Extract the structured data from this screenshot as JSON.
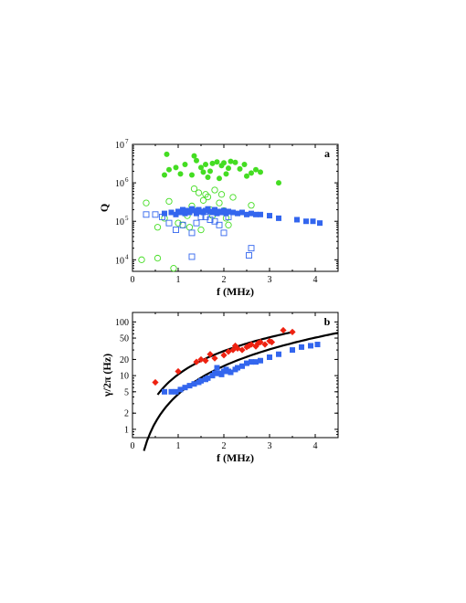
{
  "chart_data": [
    {
      "type": "scatter",
      "panel_label": "a",
      "xlabel": "f (MHz)",
      "ylabel": "Q",
      "xlim": [
        0,
        4.5
      ],
      "ylim": [
        5000,
        10000000
      ],
      "y_scale": "log",
      "x_ticks": [
        0,
        1,
        2,
        3,
        4
      ],
      "x_tick_labels": [
        "0",
        "1",
        "2",
        "3",
        "4"
      ],
      "y_ticks": [
        10000,
        100000,
        1000000,
        10000000
      ],
      "y_tick_mantissa": [
        "10",
        "10",
        "10",
        "10"
      ],
      "y_tick_exponents": [
        "4",
        "5",
        "6",
        "7"
      ],
      "grid": false,
      "series": [
        {
          "marker": "filled-circle",
          "color": "#44dd22",
          "points": [
            [
              0.75,
              5500000
            ],
            [
              0.8,
              2200000
            ],
            [
              0.95,
              2500000
            ],
            [
              1.05,
              1700000
            ],
            [
              1.15,
              3000000
            ],
            [
              1.3,
              1600000
            ],
            [
              1.4,
              3800000
            ],
            [
              1.5,
              2500000
            ],
            [
              1.55,
              1900000
            ],
            [
              1.6,
              3000000
            ],
            [
              1.65,
              1400000
            ],
            [
              1.7,
              2000000
            ],
            [
              1.75,
              3200000
            ],
            [
              1.85,
              3500000
            ],
            [
              1.9,
              1300000
            ],
            [
              1.95,
              2800000
            ],
            [
              2.0,
              3300000
            ],
            [
              2.05,
              1700000
            ],
            [
              2.1,
              2400000
            ],
            [
              2.15,
              3600000
            ],
            [
              2.25,
              3400000
            ],
            [
              2.35,
              2300000
            ],
            [
              2.45,
              3000000
            ],
            [
              2.5,
              1500000
            ],
            [
              2.6,
              1800000
            ],
            [
              2.7,
              2200000
            ],
            [
              2.8,
              1900000
            ],
            [
              3.2,
              1000000
            ],
            [
              0.7,
              1600000
            ],
            [
              1.35,
              5000000
            ]
          ]
        },
        {
          "marker": "open-circle",
          "color": "#44dd22",
          "points": [
            [
              0.2,
              10000
            ],
            [
              0.55,
              11000
            ],
            [
              0.3,
              300000
            ],
            [
              0.55,
              70000
            ],
            [
              0.7,
              120000
            ],
            [
              0.8,
              330000
            ],
            [
              0.9,
              6000
            ],
            [
              1.0,
              90000
            ],
            [
              1.1,
              80000
            ],
            [
              1.2,
              140000
            ],
            [
              1.3,
              250000
            ],
            [
              1.35,
              700000
            ],
            [
              1.45,
              550000
            ],
            [
              1.55,
              350000
            ],
            [
              1.6,
              500000
            ],
            [
              1.65,
              430000
            ],
            [
              1.7,
              200000
            ],
            [
              1.75,
              140000
            ],
            [
              1.8,
              650000
            ],
            [
              1.9,
              300000
            ],
            [
              1.95,
              500000
            ],
            [
              2.0,
              190000
            ],
            [
              2.05,
              120000
            ],
            [
              2.1,
              80000
            ],
            [
              2.2,
              420000
            ],
            [
              2.6,
              260000
            ],
            [
              1.25,
              70000
            ],
            [
              1.5,
              60000
            ]
          ]
        },
        {
          "marker": "filled-square",
          "color": "#3366ee",
          "points": [
            [
              0.7,
              160000
            ],
            [
              0.85,
              170000
            ],
            [
              0.95,
              150000
            ],
            [
              1.0,
              180000
            ],
            [
              1.05,
              170000
            ],
            [
              1.1,
              200000
            ],
            [
              1.15,
              160000
            ],
            [
              1.2,
              190000
            ],
            [
              1.25,
              170000
            ],
            [
              1.3,
              210000
            ],
            [
              1.35,
              190000
            ],
            [
              1.4,
              160000
            ],
            [
              1.45,
              200000
            ],
            [
              1.5,
              180000
            ],
            [
              1.55,
              170000
            ],
            [
              1.6,
              190000
            ],
            [
              1.65,
              210000
            ],
            [
              1.7,
              180000
            ],
            [
              1.75,
              170000
            ],
            [
              1.8,
              200000
            ],
            [
              1.85,
              160000
            ],
            [
              1.9,
              180000
            ],
            [
              1.95,
              170000
            ],
            [
              2.0,
              190000
            ],
            [
              2.05,
              160000
            ],
            [
              2.1,
              180000
            ],
            [
              2.2,
              170000
            ],
            [
              2.3,
              160000
            ],
            [
              2.4,
              170000
            ],
            [
              2.5,
              150000
            ],
            [
              2.6,
              160000
            ],
            [
              2.7,
              150000
            ],
            [
              2.8,
              150000
            ],
            [
              3.0,
              140000
            ],
            [
              3.2,
              120000
            ],
            [
              3.6,
              110000
            ],
            [
              3.8,
              100000
            ],
            [
              3.95,
              100000
            ],
            [
              4.1,
              90000
            ]
          ]
        },
        {
          "marker": "open-square",
          "color": "#3366ee",
          "points": [
            [
              0.3,
              150000
            ],
            [
              0.5,
              150000
            ],
            [
              0.65,
              130000
            ],
            [
              0.8,
              90000
            ],
            [
              0.95,
              60000
            ],
            [
              1.1,
              80000
            ],
            [
              1.3,
              12000
            ],
            [
              1.3,
              50000
            ],
            [
              1.4,
              90000
            ],
            [
              1.5,
              130000
            ],
            [
              1.6,
              130000
            ],
            [
              1.7,
              110000
            ],
            [
              1.8,
              100000
            ],
            [
              1.9,
              80000
            ],
            [
              2.0,
              50000
            ],
            [
              2.1,
              130000
            ],
            [
              2.55,
              13000
            ],
            [
              2.6,
              20000
            ]
          ]
        }
      ]
    },
    {
      "type": "scatter",
      "panel_label": "b",
      "xlabel": "f (MHz)",
      "ylabel": "γ/2π (Hz)",
      "xlim": [
        0,
        4.5
      ],
      "ylim": [
        0.7,
        150
      ],
      "y_scale": "log",
      "x_ticks": [
        0,
        1,
        2,
        3,
        4
      ],
      "x_tick_labels": [
        "0",
        "1",
        "2",
        "3",
        "4"
      ],
      "y_ticks": [
        1,
        2,
        5,
        10,
        20,
        50,
        100
      ],
      "y_tick_labels": [
        "1",
        "2",
        "5",
        "10",
        "20",
        "50",
        "100"
      ],
      "grid": false,
      "series": [
        {
          "marker": "filled-diamond",
          "color": "#ee2211",
          "points": [
            [
              0.5,
              7.5
            ],
            [
              1.0,
              12
            ],
            [
              1.4,
              18
            ],
            [
              1.5,
              20
            ],
            [
              1.6,
              19
            ],
            [
              1.7,
              25
            ],
            [
              1.8,
              21
            ],
            [
              2.0,
              24
            ],
            [
              2.1,
              28
            ],
            [
              2.2,
              30
            ],
            [
              2.25,
              36
            ],
            [
              2.3,
              32
            ],
            [
              2.4,
              30
            ],
            [
              2.5,
              34
            ],
            [
              2.55,
              36
            ],
            [
              2.6,
              38
            ],
            [
              2.7,
              35
            ],
            [
              2.75,
              40
            ],
            [
              2.8,
              42
            ],
            [
              2.9,
              38
            ],
            [
              3.0,
              44
            ],
            [
              3.05,
              42
            ],
            [
              3.3,
              70
            ],
            [
              3.5,
              65
            ]
          ]
        },
        {
          "marker": "filled-square",
          "color": "#3366ee",
          "points": [
            [
              0.7,
              5
            ],
            [
              0.85,
              5
            ],
            [
              0.95,
              5
            ],
            [
              1.05,
              5.5
            ],
            [
              1.15,
              6
            ],
            [
              1.25,
              6.5
            ],
            [
              1.35,
              7
            ],
            [
              1.45,
              7.5
            ],
            [
              1.5,
              8
            ],
            [
              1.6,
              8.5
            ],
            [
              1.65,
              9
            ],
            [
              1.75,
              10
            ],
            [
              1.8,
              11
            ],
            [
              1.85,
              14
            ],
            [
              1.9,
              11
            ],
            [
              1.95,
              10.5
            ],
            [
              2.0,
              12
            ],
            [
              2.05,
              13
            ],
            [
              2.1,
              12
            ],
            [
              2.15,
              11.5
            ],
            [
              2.25,
              13
            ],
            [
              2.3,
              14
            ],
            [
              2.4,
              15
            ],
            [
              2.5,
              17
            ],
            [
              2.6,
              18
            ],
            [
              2.7,
              18
            ],
            [
              2.8,
              19
            ],
            [
              3.0,
              22
            ],
            [
              3.2,
              25
            ],
            [
              3.5,
              30
            ],
            [
              3.7,
              34
            ],
            [
              3.9,
              36
            ],
            [
              4.05,
              38
            ]
          ]
        }
      ],
      "curves": [
        {
          "color": "#000000",
          "x_from": 0.55,
          "x_to": 3.55,
          "y_at_1MHz": 10.5,
          "exponent": 1.45
        },
        {
          "color": "#000000",
          "x_from": 0.25,
          "x_to": 4.5,
          "y_at_1MHz": 4.5,
          "exponent": 1.75
        }
      ]
    }
  ]
}
